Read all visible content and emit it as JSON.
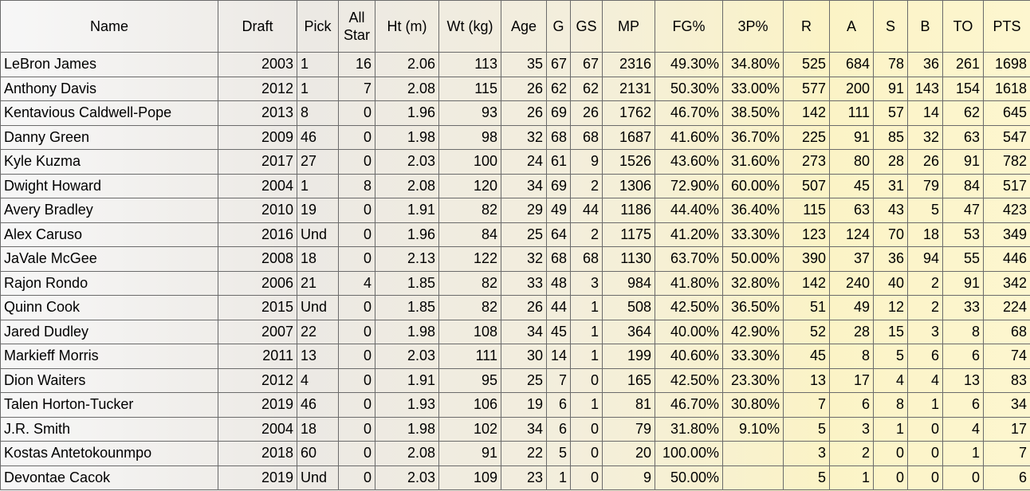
{
  "table": {
    "headers": [
      "Name",
      "Draft",
      "Pick",
      "All Star",
      "Ht (m)",
      "Wt (kg)",
      "Age",
      "G",
      "GS",
      "MP",
      "FG%",
      "3P%",
      "R",
      "A",
      "S",
      "B",
      "TO",
      "PTS"
    ],
    "rows": [
      [
        "LeBron James",
        "2003",
        "1",
        "16",
        "2.06",
        "113",
        "35",
        "67",
        "67",
        "2316",
        "49.30%",
        "34.80%",
        "525",
        "684",
        "78",
        "36",
        "261",
        "1698"
      ],
      [
        "Anthony Davis",
        "2012",
        "1",
        "7",
        "2.08",
        "115",
        "26",
        "62",
        "62",
        "2131",
        "50.30%",
        "33.00%",
        "577",
        "200",
        "91",
        "143",
        "154",
        "1618"
      ],
      [
        "Kentavious Caldwell-Pope",
        "2013",
        "8",
        "0",
        "1.96",
        "93",
        "26",
        "69",
        "26",
        "1762",
        "46.70%",
        "38.50%",
        "142",
        "111",
        "57",
        "14",
        "62",
        "645"
      ],
      [
        "Danny Green",
        "2009",
        "46",
        "0",
        "1.98",
        "98",
        "32",
        "68",
        "68",
        "1687",
        "41.60%",
        "36.70%",
        "225",
        "91",
        "85",
        "32",
        "63",
        "547"
      ],
      [
        "Kyle Kuzma",
        "2017",
        "27",
        "0",
        "2.03",
        "100",
        "24",
        "61",
        "9",
        "1526",
        "43.60%",
        "31.60%",
        "273",
        "80",
        "28",
        "26",
        "91",
        "782"
      ],
      [
        "Dwight Howard",
        "2004",
        "1",
        "8",
        "2.08",
        "120",
        "34",
        "69",
        "2",
        "1306",
        "72.90%",
        "60.00%",
        "507",
        "45",
        "31",
        "79",
        "84",
        "517"
      ],
      [
        "Avery Bradley",
        "2010",
        "19",
        "0",
        "1.91",
        "82",
        "29",
        "49",
        "44",
        "1186",
        "44.40%",
        "36.40%",
        "115",
        "63",
        "43",
        "5",
        "47",
        "423"
      ],
      [
        "Alex Caruso",
        "2016",
        "Und",
        "0",
        "1.96",
        "84",
        "25",
        "64",
        "2",
        "1175",
        "41.20%",
        "33.30%",
        "123",
        "124",
        "70",
        "18",
        "53",
        "349"
      ],
      [
        "JaVale McGee",
        "2008",
        "18",
        "0",
        "2.13",
        "122",
        "32",
        "68",
        "68",
        "1130",
        "63.70%",
        "50.00%",
        "390",
        "37",
        "36",
        "94",
        "55",
        "446"
      ],
      [
        "Rajon Rondo",
        "2006",
        "21",
        "4",
        "1.85",
        "82",
        "33",
        "48",
        "3",
        "984",
        "41.80%",
        "32.80%",
        "142",
        "240",
        "40",
        "2",
        "91",
        "342"
      ],
      [
        "Quinn Cook",
        "2015",
        "Und",
        "0",
        "1.85",
        "82",
        "26",
        "44",
        "1",
        "508",
        "42.50%",
        "36.50%",
        "51",
        "49",
        "12",
        "2",
        "33",
        "224"
      ],
      [
        "Jared Dudley",
        "2007",
        "22",
        "0",
        "1.98",
        "108",
        "34",
        "45",
        "1",
        "364",
        "40.00%",
        "42.90%",
        "52",
        "28",
        "15",
        "3",
        "8",
        "68"
      ],
      [
        "Markieff Morris",
        "2011",
        "13",
        "0",
        "2.03",
        "111",
        "30",
        "14",
        "1",
        "199",
        "40.60%",
        "33.30%",
        "45",
        "8",
        "5",
        "6",
        "6",
        "74"
      ],
      [
        "Dion Waiters",
        "2012",
        "4",
        "0",
        "1.91",
        "95",
        "25",
        "7",
        "0",
        "165",
        "42.50%",
        "23.30%",
        "13",
        "17",
        "4",
        "4",
        "13",
        "83"
      ],
      [
        "Talen Horton-Tucker",
        "2019",
        "46",
        "0",
        "1.93",
        "106",
        "19",
        "6",
        "1",
        "81",
        "46.70%",
        "30.80%",
        "7",
        "6",
        "8",
        "1",
        "6",
        "34"
      ],
      [
        "J.R. Smith",
        "2004",
        "18",
        "0",
        "1.98",
        "102",
        "34",
        "6",
        "0",
        "79",
        "31.80%",
        "9.10%",
        "5",
        "3",
        "1",
        "0",
        "4",
        "17"
      ],
      [
        "Kostas Antetokounmpo",
        "2018",
        "60",
        "0",
        "2.08",
        "91",
        "22",
        "5",
        "0",
        "20",
        "100.00%",
        null,
        "3",
        "2",
        "0",
        "0",
        "1",
        "7"
      ],
      [
        "Devontae Cacok",
        "2019",
        "Und",
        "0",
        "2.03",
        "109",
        "23",
        "1",
        "0",
        "9",
        "50.00%",
        null,
        "5",
        "1",
        "0",
        "0",
        "0",
        "6"
      ]
    ]
  }
}
